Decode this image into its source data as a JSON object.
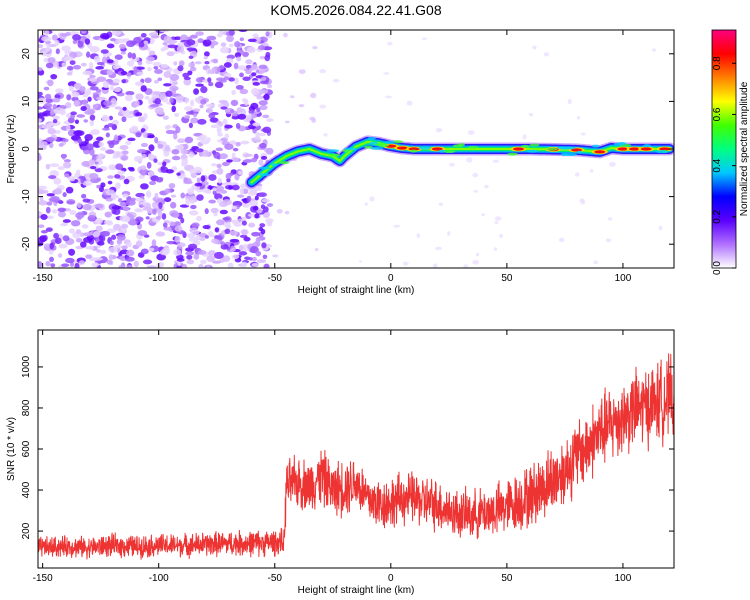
{
  "title": "KOM5.2026.084.22.41.G08",
  "chart_data": [
    {
      "type": "heatmap",
      "xlabel": "Height of straight line (km)",
      "ylabel": "Frequency (Hz)",
      "xlim": [
        -152,
        122
      ],
      "ylim": [
        -25,
        25
      ],
      "xticks": [
        -150,
        -100,
        -50,
        0,
        50,
        100
      ],
      "yticks": [
        -20,
        -10,
        0,
        10,
        20
      ],
      "colorbar": {
        "label": "Normalized spectral amplitude",
        "range": [
          0,
          0.93
        ],
        "ticks": [
          0.0,
          0.2,
          0.4,
          0.6,
          0.8
        ],
        "colormap": [
          "#ffffff",
          "#b070ff",
          "#5a00ff",
          "#0000ff",
          "#00c8ff",
          "#00ff80",
          "#40ff00",
          "#ffff00",
          "#ff8000",
          "#ff0000",
          "#ff0080"
        ]
      },
      "ridge": {
        "note": "frequency ridge (Hz) versus height (km)",
        "x": [
          -60,
          -55,
          -50,
          -45,
          -40,
          -35,
          -30,
          -25,
          -22,
          -20,
          -15,
          -10,
          -5,
          0,
          5,
          10,
          20,
          40,
          60,
          80,
          90,
          95,
          100,
          110,
          120
        ],
        "y": [
          -7,
          -5,
          -3,
          -1.5,
          -0.5,
          0,
          -1,
          -1.5,
          -2.5,
          -1.5,
          0.5,
          1.5,
          1.2,
          0.6,
          0.2,
          0,
          0,
          0,
          0,
          -0.2,
          -0.6,
          0.2,
          0,
          0,
          0
        ],
        "peak_x": [
          0,
          5,
          10,
          20,
          55,
          70,
          80,
          90,
          100,
          105,
          110,
          118
        ]
      },
      "noise_region": {
        "x_from": -152,
        "x_to": -52,
        "level": 0.3
      }
    },
    {
      "type": "line",
      "xlabel": "Height of straight line (km)",
      "ylabel": "SNR (10 * v/v)",
      "xlim": [
        -152,
        122
      ],
      "ylim": [
        20,
        1180
      ],
      "xticks": [
        -150,
        -100,
        -50,
        0,
        50,
        100
      ],
      "yticks": [
        200,
        400,
        600,
        800,
        1000
      ],
      "series": [
        {
          "name": "SNR",
          "color": "#ee3333",
          "x": [
            -150,
            -140,
            -130,
            -120,
            -110,
            -100,
            -90,
            -80,
            -70,
            -60,
            -50,
            -46,
            -45,
            -40,
            -35,
            -30,
            -25,
            -20,
            -15,
            -10,
            -5,
            0,
            5,
            10,
            15,
            20,
            25,
            30,
            35,
            40,
            45,
            50,
            55,
            60,
            65,
            70,
            75,
            80,
            85,
            90,
            95,
            100,
            105,
            110,
            115,
            120
          ],
          "mean": [
            120,
            125,
            120,
            130,
            125,
            130,
            130,
            135,
            140,
            140,
            145,
            145,
            420,
            440,
            420,
            470,
            400,
            420,
            440,
            360,
            330,
            340,
            360,
            360,
            340,
            330,
            300,
            280,
            280,
            290,
            300,
            320,
            340,
            370,
            410,
            450,
            500,
            560,
            620,
            680,
            720,
            760,
            790,
            810,
            830,
            850
          ],
          "spread": [
            60,
            60,
            60,
            65,
            65,
            65,
            65,
            70,
            70,
            75,
            75,
            75,
            150,
            150,
            150,
            170,
            150,
            170,
            160,
            150,
            150,
            150,
            150,
            150,
            150,
            150,
            140,
            140,
            140,
            140,
            150,
            160,
            170,
            180,
            190,
            200,
            200,
            210,
            210,
            220,
            220,
            220,
            230,
            230,
            230,
            240
          ]
        }
      ]
    }
  ]
}
